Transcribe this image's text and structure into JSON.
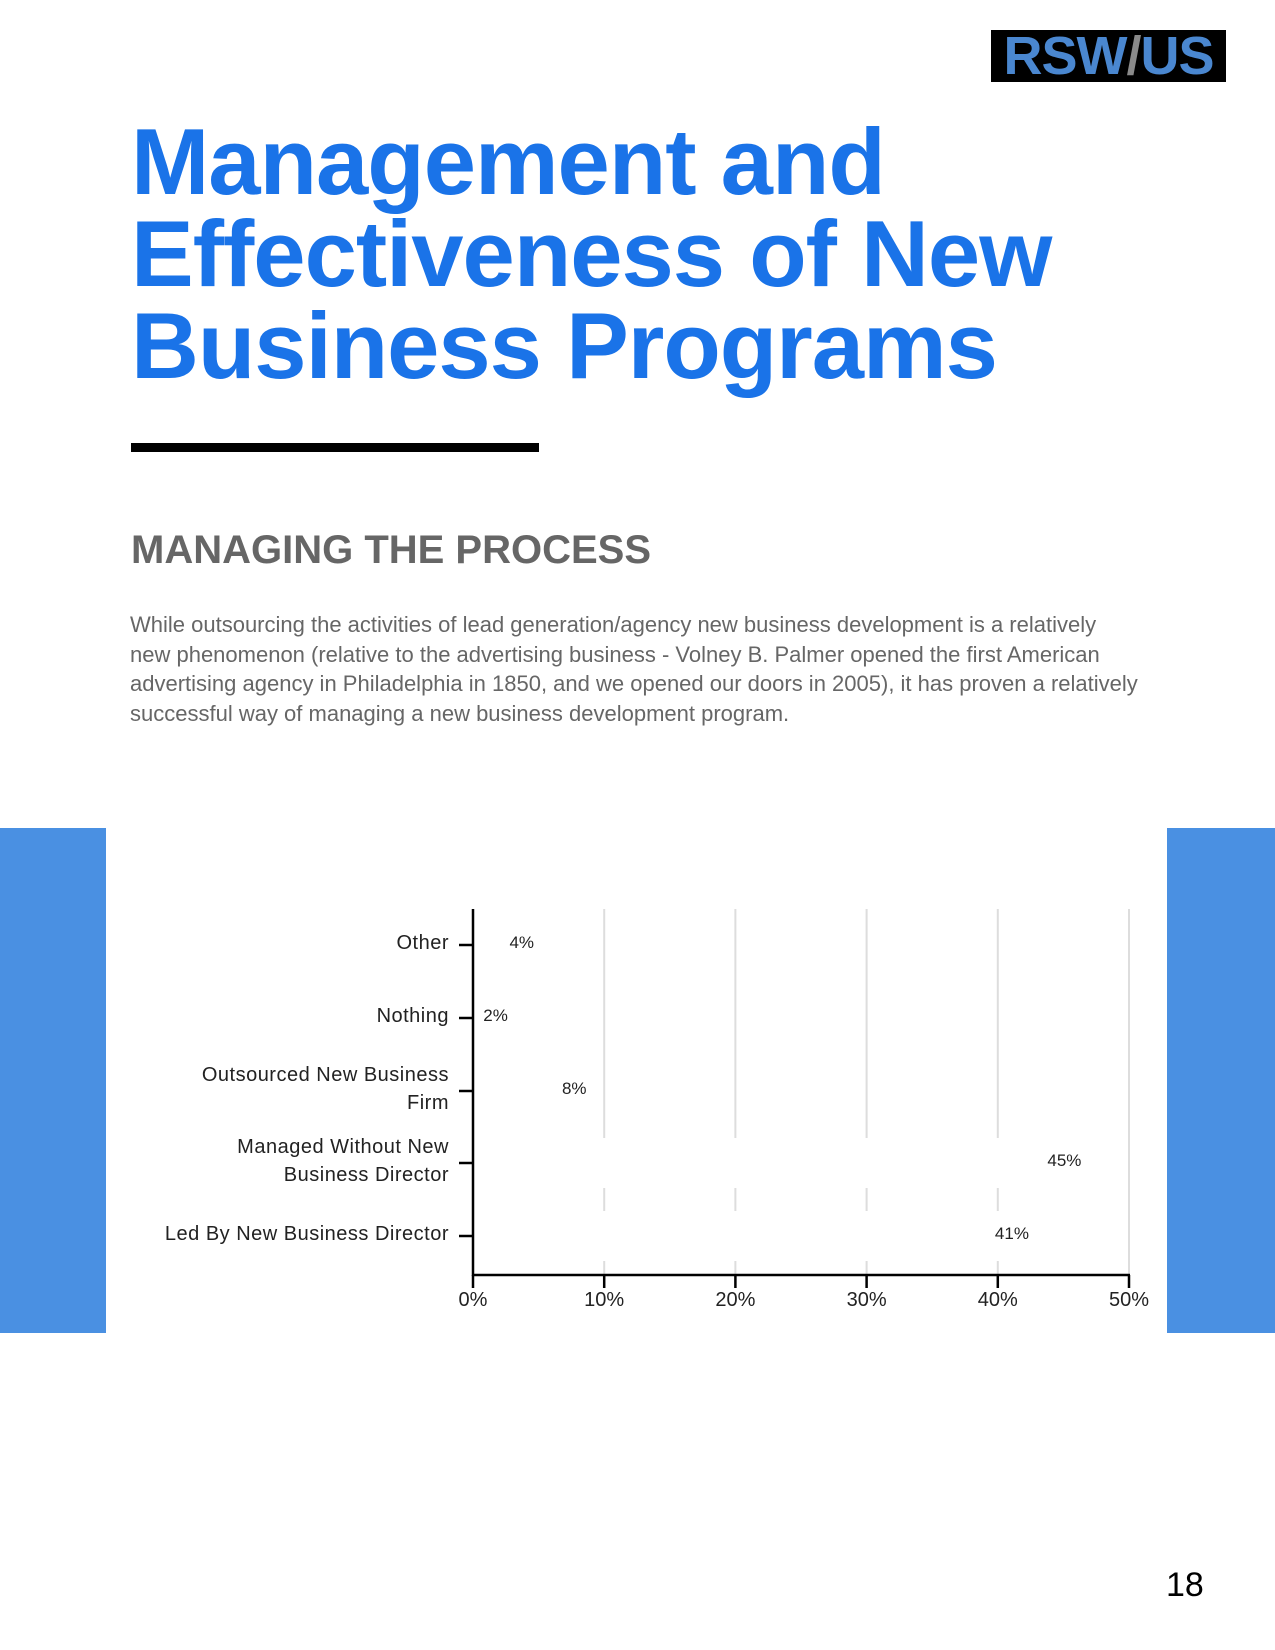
{
  "logo": {
    "left": "RSW",
    "slash": "/",
    "right": "US"
  },
  "title": {
    "lines": [
      "Management and",
      "Effectiveness of New",
      "Business Programs"
    ]
  },
  "section": {
    "heading": "MANAGING THE PROCESS",
    "paragraph": "While outsourcing the activities of lead generation/agency new business development is a relatively new phenomenon (relative to the advertising business - Volney B. Palmer opened the first American advertising agency in Philadelphia in 1850, and we opened our doors in 2005), it has proven a relatively successful way of managing a new business development program."
  },
  "colors": {
    "title": "#1a73e8",
    "side_blocks": "#4a90e2",
    "text_gray": "#666666",
    "gridline": "#dddddd",
    "bar_fill": "#ffffff"
  },
  "chart_data": {
    "type": "bar",
    "orientation": "horizontal",
    "title": "",
    "xlabel": "",
    "ylabel": "",
    "categories": [
      "Other",
      "Nothing",
      "Outsourced New Business Firm",
      "Managed Without New Business Director",
      "Led By New Business Director"
    ],
    "category_label_lines": [
      [
        "Other"
      ],
      [
        "Nothing"
      ],
      [
        "Outsourced New Business",
        "Firm"
      ],
      [
        "Managed Without New",
        "Business Director"
      ],
      [
        "Led By New Business Director"
      ]
    ],
    "values": [
      4,
      2,
      8,
      45,
      41
    ],
    "value_labels": [
      "4%",
      "2%",
      "8%",
      "45%",
      "41%"
    ],
    "xlim": [
      0,
      50
    ],
    "x_ticks": [
      "0%",
      "10%",
      "20%",
      "30%",
      "40%",
      "50%"
    ],
    "grid": true,
    "legend": null,
    "bar_color": "#ffffff"
  },
  "footer": {
    "page_number": "18"
  }
}
